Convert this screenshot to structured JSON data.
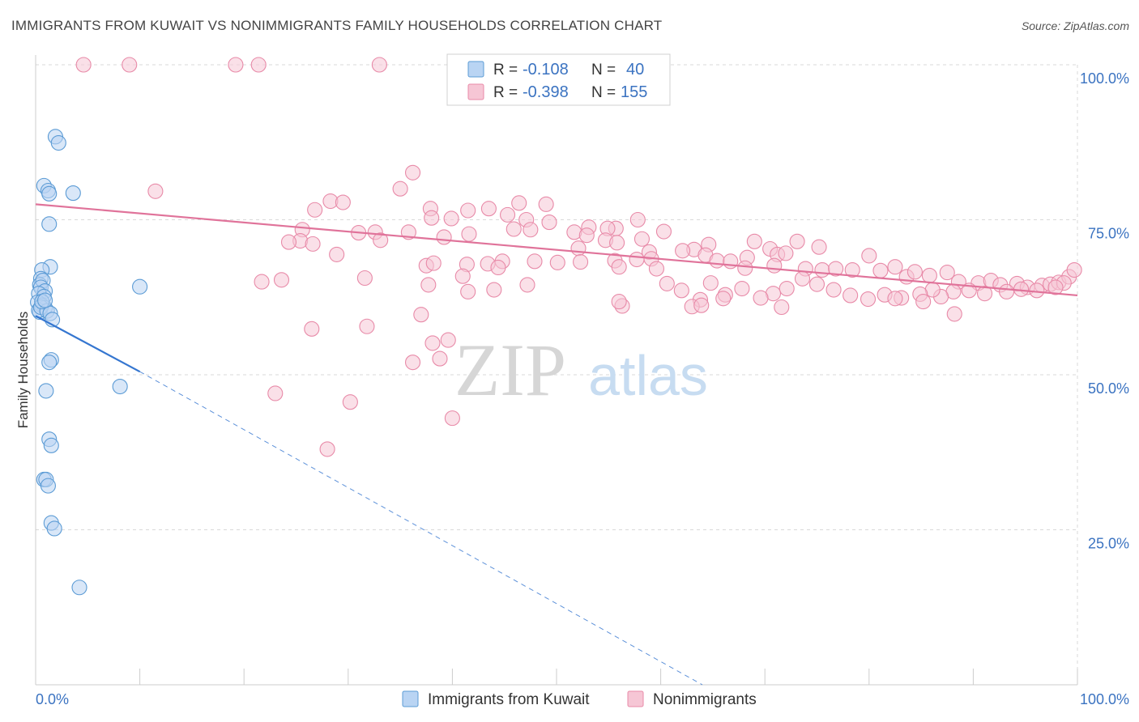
{
  "header": {
    "title": "IMMIGRANTS FROM KUWAIT VS NONIMMIGRANTS FAMILY HOUSEHOLDS CORRELATION CHART",
    "source": "Source: ZipAtlas.com"
  },
  "watermark": {
    "zip": "ZIP",
    "atlas": "atlas"
  },
  "colors": {
    "blue": "#5b9bd5",
    "blue_fill": "#b9d4f3",
    "blue_line": "#3576d0",
    "pink": "#e88aa8",
    "pink_fill": "#f6c6d5",
    "pink_line": "#e0739a",
    "grid": "#d9d9d9",
    "axis_text": "#3b73c1"
  },
  "legend_top": [
    {
      "r_label": "R =",
      "r_value": "-0.108",
      "n_label": "N =",
      "n_value": "40"
    },
    {
      "r_label": "R =",
      "r_value": "-0.398",
      "n_label": "N =",
      "n_value": "155"
    }
  ],
  "legend_bottom": [
    "Immigrants from Kuwait",
    "Nonimmigrants"
  ],
  "chart_data": {
    "type": "scatter",
    "title": "IMMIGRANTS FROM KUWAIT VS NONIMMIGRANTS FAMILY HOUSEHOLDS CORRELATION CHART",
    "xlabel": "",
    "ylabel": "Family Households",
    "xlim": [
      0,
      100
    ],
    "ylim": [
      0,
      100
    ],
    "x_tick_labels": [
      "0.0%",
      "100.0%"
    ],
    "y_tick_labels": [
      "100.0%",
      "75.0%",
      "50.0%",
      "25.0%"
    ],
    "y_ticks": [
      100,
      75,
      50,
      25
    ],
    "grid": true,
    "legend": "top-center",
    "series": [
      {
        "name": "Immigrants from Kuwait",
        "R": -0.108,
        "N": 40,
        "trend": {
          "x": [
            0,
            10
          ],
          "y": [
            59.5,
            50.5
          ],
          "dashed_to": [
            64,
            0
          ]
        },
        "points": [
          [
            1.9,
            88.4
          ],
          [
            2.2,
            87.4
          ],
          [
            0.8,
            80.5
          ],
          [
            1.2,
            79.7
          ],
          [
            1.3,
            79.2
          ],
          [
            3.6,
            79.3
          ],
          [
            1.3,
            74.3
          ],
          [
            1.4,
            67.4
          ],
          [
            0.6,
            66.9
          ],
          [
            0.5,
            65.5
          ],
          [
            0.4,
            64.5
          ],
          [
            0.7,
            65.2
          ],
          [
            0.5,
            64.1
          ],
          [
            0.9,
            63.5
          ],
          [
            0.3,
            63.1
          ],
          [
            0.8,
            62.6
          ],
          [
            0.2,
            61.7
          ],
          [
            0.6,
            61.2
          ],
          [
            0.9,
            60.8
          ],
          [
            0.4,
            60.1
          ],
          [
            0.3,
            60.4
          ],
          [
            0.5,
            60.9
          ],
          [
            1.1,
            60.3
          ],
          [
            1.4,
            59.9
          ],
          [
            1.6,
            58.9
          ],
          [
            10.0,
            64.2
          ],
          [
            1.5,
            52.4
          ],
          [
            1.3,
            52.0
          ],
          [
            1.0,
            47.4
          ],
          [
            8.1,
            48.1
          ],
          [
            1.3,
            39.6
          ],
          [
            1.5,
            38.6
          ],
          [
            0.8,
            33.1
          ],
          [
            1.0,
            33.1
          ],
          [
            1.2,
            32.1
          ],
          [
            1.5,
            26.1
          ],
          [
            1.8,
            25.2
          ],
          [
            4.2,
            15.7
          ],
          [
            0.6,
            61.8
          ],
          [
            0.9,
            62.0
          ]
        ]
      },
      {
        "name": "Nonimmigrants",
        "R": -0.398,
        "N": 155,
        "trend": {
          "x": [
            0,
            100
          ],
          "y": [
            77.5,
            62.8
          ]
        },
        "points": [
          [
            4.6,
            100
          ],
          [
            9.0,
            100
          ],
          [
            19.2,
            100
          ],
          [
            21.4,
            100
          ],
          [
            33.0,
            100
          ],
          [
            11.5,
            79.6
          ],
          [
            36.2,
            82.6
          ],
          [
            35.0,
            80.0
          ],
          [
            28.3,
            78.0
          ],
          [
            29.5,
            77.8
          ],
          [
            26.8,
            76.6
          ],
          [
            46.4,
            77.7
          ],
          [
            49.0,
            77.5
          ],
          [
            43.5,
            76.8
          ],
          [
            37.9,
            76.8
          ],
          [
            41.5,
            76.5
          ],
          [
            38.0,
            75.3
          ],
          [
            39.9,
            75.2
          ],
          [
            47.1,
            75.0
          ],
          [
            45.3,
            75.8
          ],
          [
            49.3,
            74.6
          ],
          [
            57.8,
            75.0
          ],
          [
            53.1,
            73.8
          ],
          [
            55.7,
            73.6
          ],
          [
            54.9,
            73.6
          ],
          [
            45.9,
            73.5
          ],
          [
            47.5,
            73.4
          ],
          [
            32.6,
            73.0
          ],
          [
            25.6,
            73.4
          ],
          [
            31.0,
            72.9
          ],
          [
            35.8,
            73.0
          ],
          [
            39.2,
            72.2
          ],
          [
            25.4,
            71.6
          ],
          [
            24.3,
            71.4
          ],
          [
            26.6,
            71.1
          ],
          [
            33.1,
            71.7
          ],
          [
            41.6,
            72.7
          ],
          [
            51.7,
            73.0
          ],
          [
            52.9,
            72.5
          ],
          [
            60.3,
            73.1
          ],
          [
            54.7,
            71.7
          ],
          [
            55.8,
            71.3
          ],
          [
            58.2,
            71.9
          ],
          [
            52.1,
            70.4
          ],
          [
            64.6,
            71.0
          ],
          [
            69.0,
            71.5
          ],
          [
            73.1,
            71.5
          ],
          [
            75.2,
            70.6
          ],
          [
            70.5,
            70.3
          ],
          [
            63.2,
            70.2
          ],
          [
            62.1,
            70.0
          ],
          [
            58.9,
            69.8
          ],
          [
            64.3,
            69.3
          ],
          [
            68.3,
            68.9
          ],
          [
            71.2,
            69.4
          ],
          [
            72.0,
            69.6
          ],
          [
            80.0,
            69.2
          ],
          [
            59.1,
            68.7
          ],
          [
            57.7,
            68.6
          ],
          [
            55.6,
            68.4
          ],
          [
            52.3,
            68.2
          ],
          [
            50.1,
            68.1
          ],
          [
            47.9,
            68.3
          ],
          [
            44.8,
            68.3
          ],
          [
            43.4,
            67.9
          ],
          [
            41.4,
            67.8
          ],
          [
            37.5,
            67.6
          ],
          [
            44.4,
            67.3
          ],
          [
            59.6,
            67.1
          ],
          [
            56.0,
            67.4
          ],
          [
            65.4,
            68.4
          ],
          [
            66.7,
            68.3
          ],
          [
            68.1,
            67.2
          ],
          [
            70.9,
            67.6
          ],
          [
            73.9,
            67.1
          ],
          [
            75.5,
            66.9
          ],
          [
            76.8,
            67.1
          ],
          [
            78.4,
            66.9
          ],
          [
            81.1,
            66.8
          ],
          [
            82.5,
            67.4
          ],
          [
            83.6,
            65.8
          ],
          [
            84.4,
            66.6
          ],
          [
            85.8,
            66.0
          ],
          [
            87.5,
            66.5
          ],
          [
            88.6,
            65.0
          ],
          [
            90.5,
            64.8
          ],
          [
            91.7,
            65.2
          ],
          [
            92.6,
            64.5
          ],
          [
            94.2,
            64.7
          ],
          [
            95.2,
            64.1
          ],
          [
            96.6,
            64.4
          ],
          [
            97.4,
            64.6
          ],
          [
            98.2,
            64.9
          ],
          [
            99.2,
            65.8
          ],
          [
            99.7,
            66.9
          ],
          [
            98.7,
            64.8
          ],
          [
            97.9,
            64.1
          ],
          [
            96.1,
            63.6
          ],
          [
            94.6,
            63.8
          ],
          [
            93.2,
            63.4
          ],
          [
            91.1,
            63.1
          ],
          [
            89.6,
            63.6
          ],
          [
            88.1,
            63.4
          ],
          [
            86.9,
            62.6
          ],
          [
            86.1,
            63.7
          ],
          [
            84.9,
            63.0
          ],
          [
            83.1,
            62.4
          ],
          [
            81.5,
            62.9
          ],
          [
            79.9,
            62.2
          ],
          [
            78.2,
            62.8
          ],
          [
            76.6,
            63.7
          ],
          [
            75.0,
            64.6
          ],
          [
            73.6,
            65.5
          ],
          [
            72.1,
            63.9
          ],
          [
            70.8,
            63.1
          ],
          [
            69.6,
            62.4
          ],
          [
            67.8,
            63.9
          ],
          [
            66.2,
            62.9
          ],
          [
            64.8,
            64.8
          ],
          [
            62.0,
            63.6
          ],
          [
            60.6,
            64.7
          ],
          [
            85.2,
            61.8
          ],
          [
            82.5,
            62.3
          ],
          [
            71.6,
            60.9
          ],
          [
            66.0,
            62.3
          ],
          [
            56.3,
            61.1
          ],
          [
            63.8,
            62.1
          ],
          [
            47.2,
            64.5
          ],
          [
            37.7,
            64.5
          ],
          [
            44.0,
            63.7
          ],
          [
            41.5,
            63.4
          ],
          [
            38.2,
            68.0
          ],
          [
            31.6,
            65.6
          ],
          [
            28.9,
            69.4
          ],
          [
            23.6,
            65.3
          ],
          [
            21.7,
            65.0
          ],
          [
            41.0,
            65.9
          ],
          [
            37.0,
            59.7
          ],
          [
            31.8,
            57.8
          ],
          [
            26.5,
            57.4
          ],
          [
            23.0,
            47.0
          ],
          [
            38.1,
            55.1
          ],
          [
            39.6,
            55.6
          ],
          [
            38.8,
            52.6
          ],
          [
            36.2,
            52.0
          ],
          [
            30.2,
            45.6
          ],
          [
            28.0,
            38.0
          ],
          [
            40.0,
            43.0
          ],
          [
            63.0,
            61.0
          ],
          [
            63.9,
            61.2
          ],
          [
            88.2,
            59.8
          ],
          [
            56.0,
            61.8
          ]
        ]
      }
    ]
  }
}
